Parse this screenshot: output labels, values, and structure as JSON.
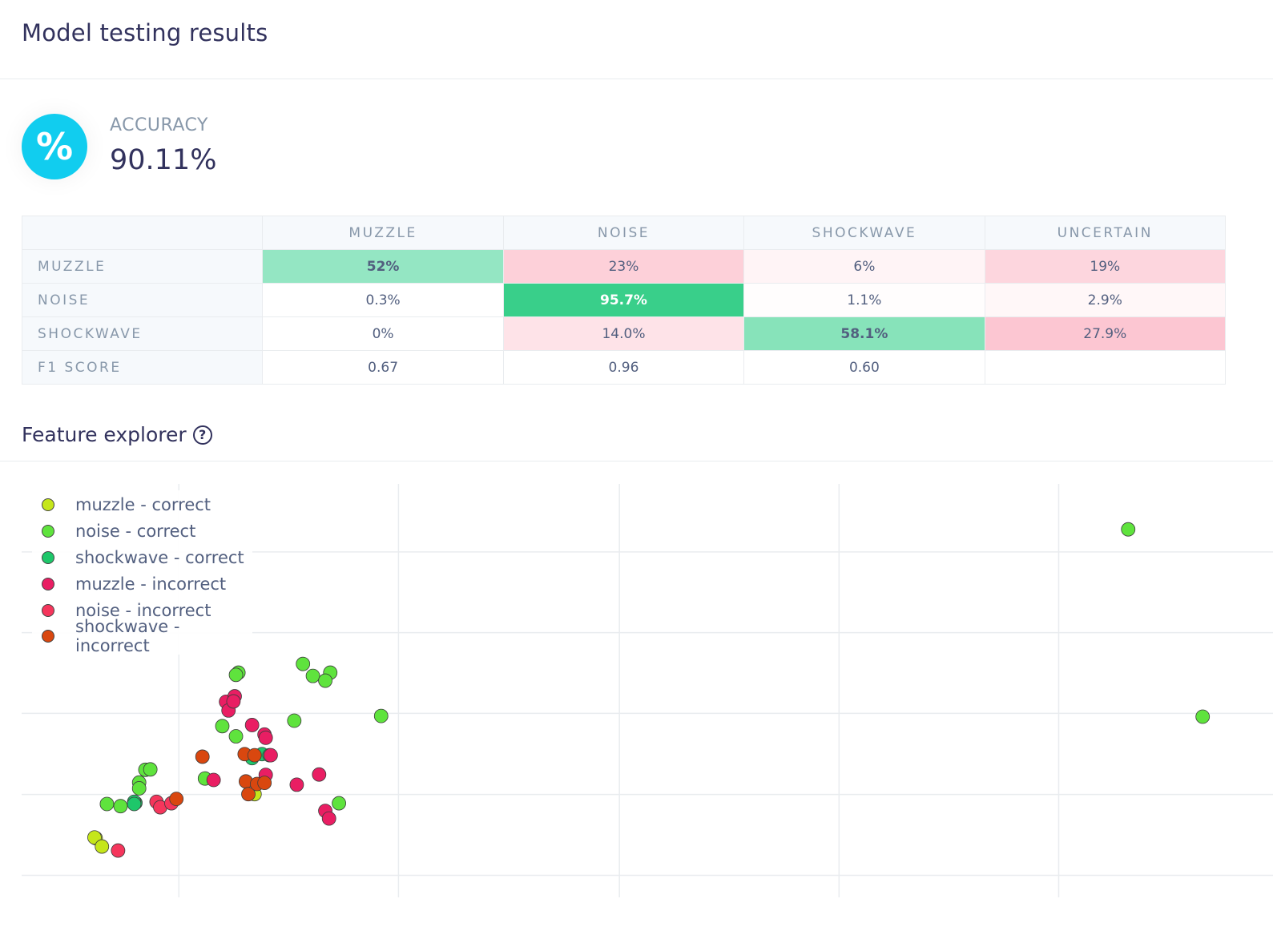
{
  "header": {
    "title": "Model testing results"
  },
  "accuracy": {
    "icon": "percent-icon",
    "icon_glyph": "%",
    "label": "ACCURACY",
    "value": "90.11%",
    "icon_color": "#11cdef"
  },
  "confusion_matrix": {
    "columns": [
      "MUZZLE",
      "NOISE",
      "SHOCKWAVE",
      "UNCERTAIN"
    ],
    "rows": [
      {
        "label": "MUZZLE",
        "cells": [
          {
            "value": "52%",
            "bg": "#94e6c3",
            "bold": true
          },
          {
            "value": "23%",
            "bg": "#fdd0d9",
            "bold": false
          },
          {
            "value": "6%",
            "bg": "#fff4f6",
            "bold": false
          },
          {
            "value": "19%",
            "bg": "#fdd6de",
            "bold": false
          }
        ]
      },
      {
        "label": "NOISE",
        "cells": [
          {
            "value": "0.3%",
            "bg": "#ffffff",
            "bold": false
          },
          {
            "value": "95.7%",
            "bg": "#39cf8a",
            "bold": true,
            "color": "#ffffff"
          },
          {
            "value": "1.1%",
            "bg": "#fffdfd",
            "bold": false
          },
          {
            "value": "2.9%",
            "bg": "#fff7f8",
            "bold": false
          }
        ]
      },
      {
        "label": "SHOCKWAVE",
        "cells": [
          {
            "value": "0%",
            "bg": "#ffffff",
            "bold": false
          },
          {
            "value": "14.0%",
            "bg": "#fee3e8",
            "bold": false
          },
          {
            "value": "58.1%",
            "bg": "#87e3ba",
            "bold": true
          },
          {
            "value": "27.9%",
            "bg": "#fcc6d2",
            "bold": false
          }
        ]
      },
      {
        "label": "F1 SCORE",
        "cells": [
          {
            "value": "0.67",
            "bg": "#ffffff",
            "bold": false
          },
          {
            "value": "0.96",
            "bg": "#ffffff",
            "bold": false
          },
          {
            "value": "0.60",
            "bg": "#ffffff",
            "bold": false
          },
          {
            "value": "",
            "bg": "#ffffff",
            "bold": false
          }
        ]
      }
    ]
  },
  "feature_explorer": {
    "title": "Feature explorer",
    "help_icon": "help-icon",
    "help_glyph": "?"
  },
  "chart_data": {
    "type": "scatter",
    "title": "",
    "xlabel": "",
    "ylabel": "",
    "xlim": [
      0,
      100
    ],
    "ylim": [
      0,
      100
    ],
    "grid": true,
    "legend_position": "top-left",
    "series": [
      {
        "name": "muzzle - correct",
        "color": "#c5e61b",
        "points": [
          [
            6.1,
            9.0
          ],
          [
            6.0,
            9.2
          ],
          [
            6.6,
            6.7
          ],
          [
            18.9,
            21.1
          ]
        ]
      },
      {
        "name": "noise - correct",
        "color": "#5fe33d",
        "points": [
          [
            22.8,
            56.9
          ],
          [
            23.6,
            53.6
          ],
          [
            25.0,
            54.5
          ],
          [
            10.1,
            27.8
          ],
          [
            10.5,
            27.9
          ],
          [
            9.6,
            24.3
          ],
          [
            9.6,
            22.7
          ],
          [
            8.1,
            17.8
          ],
          [
            7.0,
            18.4
          ],
          [
            14.9,
            25.4
          ],
          [
            16.3,
            39.8
          ],
          [
            17.4,
            37.0
          ],
          [
            22.1,
            41.3
          ],
          [
            24.6,
            52.3
          ],
          [
            29.1,
            42.6
          ],
          [
            89.3,
            93.9
          ],
          [
            95.3,
            42.4
          ],
          [
            25.7,
            18.6
          ],
          [
            17.6,
            54.5
          ],
          [
            17.4,
            53.9
          ]
        ]
      },
      {
        "name": "shockwave - correct",
        "color": "#1ec76a",
        "points": [
          [
            9.3,
            18.7
          ],
          [
            9.2,
            19.0
          ],
          [
            9.2,
            18.4
          ],
          [
            18.7,
            31.0
          ],
          [
            19.5,
            32.1
          ],
          [
            20.1,
            31.8
          ]
        ]
      },
      {
        "name": "muzzle - incorrect",
        "color": "#e91e63",
        "points": [
          [
            16.6,
            46.5
          ],
          [
            17.3,
            48.0
          ],
          [
            16.8,
            44.1
          ],
          [
            17.2,
            46.6
          ],
          [
            18.7,
            40.1
          ],
          [
            19.7,
            37.5
          ],
          [
            19.8,
            36.6
          ],
          [
            20.2,
            31.8
          ],
          [
            15.6,
            25.0
          ],
          [
            19.8,
            26.4
          ],
          [
            22.3,
            23.7
          ],
          [
            24.6,
            16.5
          ],
          [
            24.9,
            14.4
          ],
          [
            24.1,
            26.5
          ]
        ]
      },
      {
        "name": "noise - incorrect",
        "color": "#f5365c",
        "points": [
          [
            7.9,
            5.6
          ],
          [
            11.0,
            19.0
          ],
          [
            11.3,
            17.5
          ],
          [
            12.2,
            18.6
          ]
        ]
      },
      {
        "name": "shockwave - incorrect",
        "color": "#d9470f",
        "points": [
          [
            12.6,
            19.8
          ],
          [
            14.7,
            31.4
          ],
          [
            18.2,
            24.6
          ],
          [
            18.4,
            21.1
          ],
          [
            19.1,
            23.9
          ],
          [
            19.7,
            24.2
          ],
          [
            18.1,
            32.1
          ],
          [
            18.9,
            31.8
          ]
        ]
      }
    ]
  }
}
